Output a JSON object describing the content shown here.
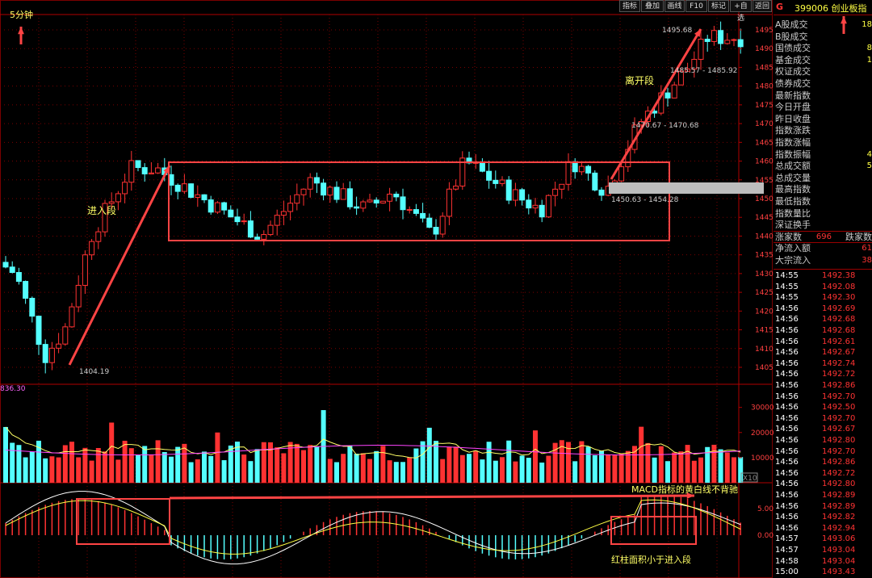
{
  "toolbar": {
    "buttons": [
      "指标",
      "叠加",
      "画线",
      "F10",
      "标记",
      "+自选",
      "返回"
    ]
  },
  "chart_header": {
    "period": "5分钟",
    "volume_label": "836.30",
    "macd_zoom": "X10"
  },
  "price_axis": {
    "ticks": [
      1495,
      1490,
      1485,
      1480,
      1475,
      1470,
      1465,
      1460,
      1455,
      1450,
      1445,
      1440,
      1435,
      1430,
      1425,
      1420,
      1415,
      1410,
      1405
    ]
  },
  "volume_axis": {
    "ticks": [
      30000,
      20000,
      10000
    ]
  },
  "macd_axis": {
    "ticks": [
      "5.00",
      "0.00"
    ]
  },
  "annotations": {
    "enter": "进入段",
    "exit": "离开段",
    "low_label": "1404.19",
    "high_label": "1495.68",
    "range1": "1485.57 - 1485.92",
    "range2": "1470.67 - 1470.68",
    "range3": "1450.63 - 1454.28",
    "macd_note": "MACD指标的黄白线不背驰",
    "red_area_note": "红柱面积小于进入段"
  },
  "side_panel": {
    "marker": "G",
    "code": "399006",
    "title": "创业板指",
    "info_rows": [
      {
        "label": "A股成交",
        "value": "18"
      },
      {
        "label": "B股成交",
        "value": ""
      },
      {
        "label": "国债成交",
        "value": "8"
      },
      {
        "label": "基金成交",
        "value": "1"
      },
      {
        "label": "权证成交",
        "value": ""
      },
      {
        "label": "债券成交",
        "value": ""
      },
      {
        "label": "最新指数",
        "value": ""
      },
      {
        "label": "今日开盘",
        "value": ""
      },
      {
        "label": "昨日收盘",
        "value": ""
      },
      {
        "label": "指数涨跌",
        "value": ""
      },
      {
        "label": "指数涨幅",
        "value": ""
      },
      {
        "label": "指数振幅",
        "value": "4"
      },
      {
        "label": "总成交额",
        "value": "5"
      },
      {
        "label": "总成交量",
        "value": ""
      },
      {
        "label": "最高指数",
        "value": ""
      },
      {
        "label": "最低指数",
        "value": ""
      },
      {
        "label": "指数量比",
        "value": ""
      },
      {
        "label": "深证换手",
        "value": ""
      },
      {
        "label": "涨家数",
        "value": "696"
      },
      {
        "label": "净流入额",
        "value": "61"
      },
      {
        "label": "大宗流入",
        "value": "38"
      }
    ],
    "fall_label": "跌家数",
    "ticks": [
      {
        "time": "14:55",
        "price": "1492.38"
      },
      {
        "time": "14:55",
        "price": "1492.08"
      },
      {
        "time": "14:55",
        "price": "1492.30"
      },
      {
        "time": "14:56",
        "price": "1492.69"
      },
      {
        "time": "14:56",
        "price": "1492.68"
      },
      {
        "time": "14:56",
        "price": "1492.68"
      },
      {
        "time": "14:56",
        "price": "1492.61"
      },
      {
        "time": "14:56",
        "price": "1492.67"
      },
      {
        "time": "14:56",
        "price": "1492.74"
      },
      {
        "time": "14:56",
        "price": "1492.72"
      },
      {
        "time": "14:56",
        "price": "1492.86"
      },
      {
        "time": "14:56",
        "price": "1492.70"
      },
      {
        "time": "14:56",
        "price": "1492.50"
      },
      {
        "time": "14:56",
        "price": "1492.70"
      },
      {
        "time": "14:56",
        "price": "1492.67"
      },
      {
        "time": "14:56",
        "price": "1492.80"
      },
      {
        "time": "14:56",
        "price": "1492.70"
      },
      {
        "time": "14:56",
        "price": "1492.86"
      },
      {
        "time": "14:56",
        "price": "1492.72"
      },
      {
        "time": "14:56",
        "price": "1492.80"
      },
      {
        "time": "14:56",
        "price": "1492.89"
      },
      {
        "time": "14:56",
        "price": "1492.89"
      },
      {
        "time": "14:56",
        "price": "1492.82"
      },
      {
        "time": "14:56",
        "price": "1492.94"
      },
      {
        "time": "14:57",
        "price": "1493.06"
      },
      {
        "time": "14:57",
        "price": "1493.04"
      },
      {
        "time": "14:58",
        "price": "1493.04"
      },
      {
        "time": "15:00",
        "price": "1493.43"
      }
    ]
  },
  "colors": {
    "up": "#ff3232",
    "down": "#54ffff",
    "grid": "#7a0000",
    "accent": "#ff4444",
    "text_axis": "#ff4040",
    "annot": "#ffff66"
  }
}
